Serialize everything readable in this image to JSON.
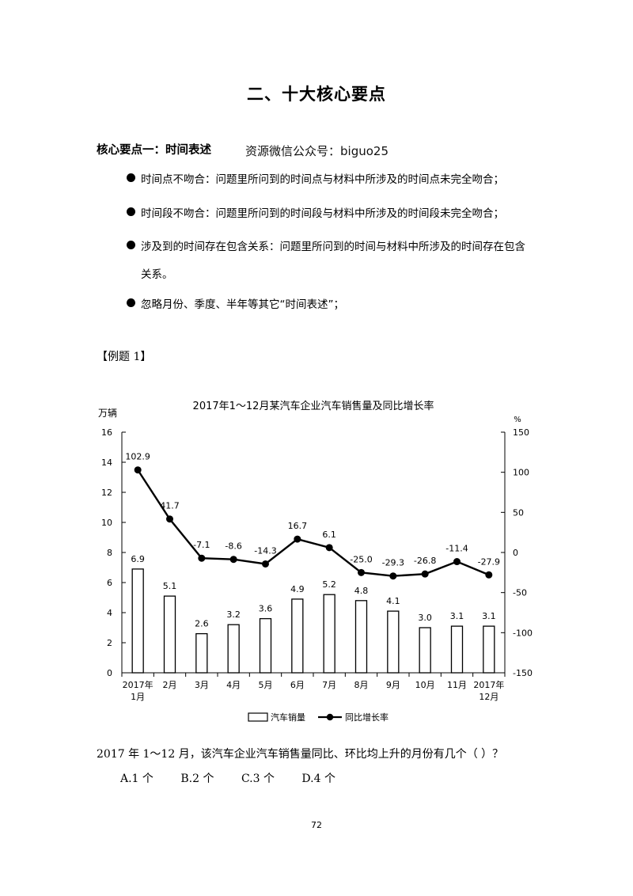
{
  "page": {
    "title": "二、十大核心要点",
    "section_heading": "核心要点一：时间表述",
    "watermark": "资源微信公众号：biguo25",
    "bullets": [
      "时间点不吻合：问题里所问到的时间点与材料中所涉及的时间点未完全吻合；",
      "时间段不吻合：问题里所问到的时间段与材料中所涉及的时间段未完全吻合；",
      "涉及到的时间存在包含关系：问题里所问到的时间与材料中所涉及的时间存在包含",
      "忽略月份、季度、半年等其它“时间表述”；"
    ],
    "bullet3_continuation": "关系。",
    "example_label": "【例题 1】",
    "question": "2017 年 1～12 月，该汽车企业汽车销售量同比、环比均上升的月份有几个（ ）？",
    "options": [
      "A.1 个",
      "B.2 个",
      "C.3 个",
      "D.4 个"
    ],
    "page_number": "72"
  },
  "chart_data": {
    "type": "bar+line",
    "title": "2017年1～12月某汽车企业汽车销售量及同比增长率",
    "left_axis_label": "万辆",
    "right_axis_label": "%",
    "categories": [
      "2017年\n1月",
      "2月",
      "3月",
      "4月",
      "5月",
      "6月",
      "7月",
      "8月",
      "9月",
      "10月",
      "11月",
      "2017年\n12月"
    ],
    "series": [
      {
        "name": "汽车销量",
        "type": "bar",
        "axis": "left",
        "values": [
          6.9,
          5.1,
          2.6,
          3.2,
          3.6,
          4.9,
          5.2,
          4.8,
          4.1,
          3.0,
          3.1,
          3.1
        ],
        "labels": [
          "6.9",
          "5.1",
          "2.6",
          "3.2",
          "3.6",
          "4.9",
          "5.2",
          "4.8",
          "4.1",
          "3.0",
          "3.1",
          "3.1"
        ]
      },
      {
        "name": "同比增长率",
        "type": "line",
        "axis": "right",
        "values": [
          102.9,
          41.7,
          -7.1,
          -8.6,
          -14.3,
          16.7,
          6.1,
          -25.0,
          -29.3,
          -26.8,
          -11.4,
          -27.9
        ],
        "labels": [
          "102.9",
          "41.7",
          "-7.1",
          "-8.6",
          "-14.3",
          "16.7",
          "6.1",
          "-25.0",
          "-29.3",
          "-26.8",
          "-11.4",
          "-27.9"
        ]
      }
    ],
    "left_ylim": [
      0,
      16
    ],
    "left_ticks": [
      "0",
      "2",
      "4",
      "6",
      "8",
      "10",
      "12",
      "14",
      "16"
    ],
    "right_ylim": [
      -150,
      150
    ],
    "right_ticks": [
      "-150",
      "-100",
      "-50",
      "0",
      "50",
      "100",
      "150"
    ],
    "legend_position": "bottom",
    "grid": false,
    "colors": {
      "bar_fill": "#ffffff",
      "bar_stroke": "#000000",
      "line": "#000000"
    }
  }
}
